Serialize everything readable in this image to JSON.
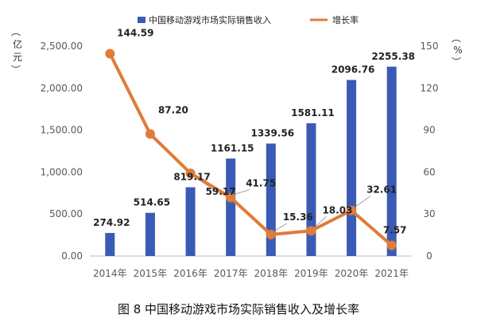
{
  "caption": "图 8 中国移动游戏市场实际销售收入及增长率",
  "chart_data": {
    "type": "bar+line",
    "categories": [
      "2014年",
      "2015年",
      "2016年",
      "2017年",
      "2018年",
      "2019年",
      "2020年",
      "2021年"
    ],
    "series": [
      {
        "name": "中国移动游戏市场实际销售收入",
        "type": "bar",
        "axis": "left",
        "color": "#3a5bb5",
        "values": [
          274.92,
          514.65,
          819.17,
          1161.15,
          1339.56,
          1581.11,
          2096.76,
          2255.38
        ],
        "labels": [
          "274.92",
          "514.65",
          "819.17",
          "1161.15",
          "1339.56",
          "1581.11",
          "2096.76",
          "2255.38"
        ]
      },
      {
        "name": "增长率",
        "type": "line",
        "axis": "right",
        "color": "#e07b39",
        "values": [
          144.59,
          87.2,
          59.17,
          41.75,
          15.36,
          18.03,
          32.61,
          7.57
        ],
        "labels": [
          "144.59",
          "87.20",
          "59.17",
          "41.75",
          "15.36",
          "18.03",
          "32.61",
          "7.57"
        ]
      }
    ],
    "left_axis": {
      "unit_label": "亿元",
      "range": [
        0,
        2500
      ],
      "ticks": [
        "0.00",
        "500.00",
        "1,000.00",
        "1,500.00",
        "2,000.00",
        "2,500.00"
      ],
      "tick_values": [
        0,
        500,
        1000,
        1500,
        2000,
        2500
      ]
    },
    "right_axis": {
      "unit_label": "%",
      "range": [
        0,
        150
      ],
      "ticks": [
        "0",
        "30",
        "60",
        "90",
        "120",
        "150"
      ],
      "tick_values": [
        0,
        30,
        60,
        90,
        120,
        150
      ]
    },
    "legend_position": "top",
    "grid": false
  }
}
